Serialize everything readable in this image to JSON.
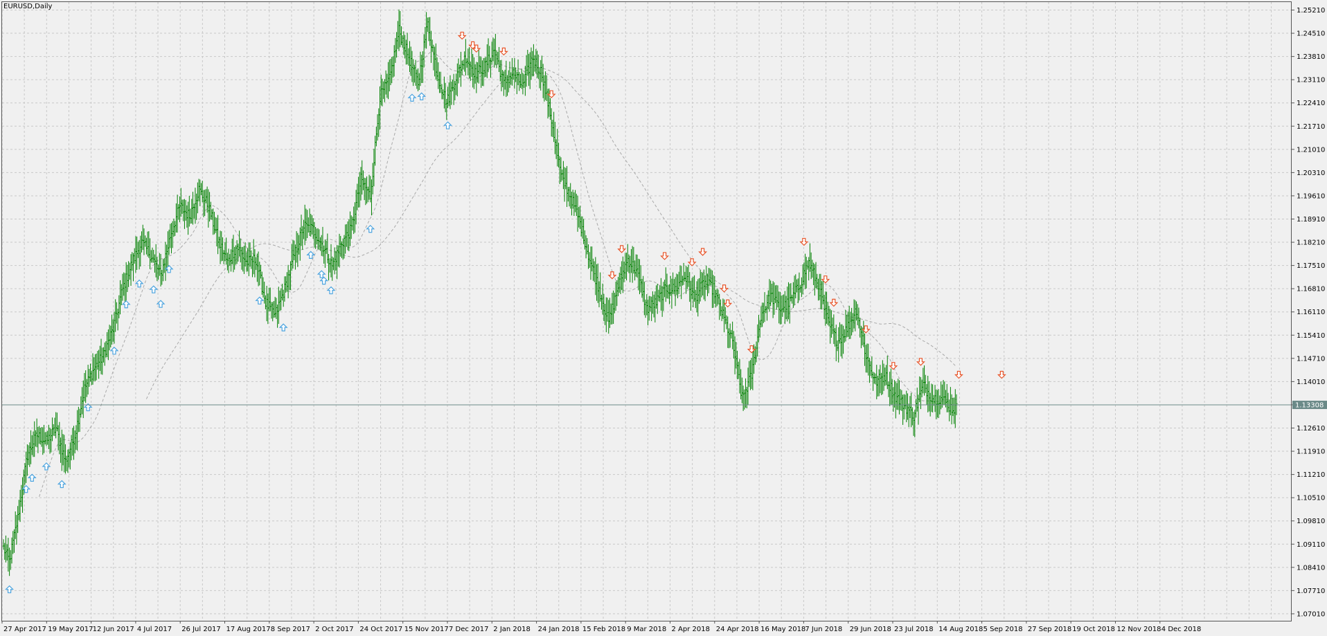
{
  "window": {
    "title": "EURUSD,Daily"
  },
  "colors": {
    "background": "#f0f0f0",
    "grid": "#c8c8c8",
    "bars": "#008000",
    "buy_arrow": "#4aa3df",
    "sell_arrow": "#e8552a",
    "current_price_line": "#6b8a88",
    "price_label_bg": "#6b8a88",
    "price_label_text": "#ffffff",
    "moving_average": "#a8a8a8"
  },
  "chart_data": {
    "type": "ohlc",
    "title": "EURUSD,Daily",
    "grid": true,
    "current_price": "1.13308",
    "ylim": [
      1.068,
      1.2545
    ],
    "y_ticks": [
      "1.25210",
      "1.24510",
      "1.23810",
      "1.23110",
      "1.22410",
      "1.21710",
      "1.21010",
      "1.20310",
      "1.19610",
      "1.18910",
      "1.18210",
      "1.17510",
      "1.16810",
      "1.16110",
      "1.15410",
      "1.14710",
      "1.14010",
      "1.13310",
      "1.12610",
      "1.11910",
      "1.11210",
      "1.10510",
      "1.09810",
      "1.09110",
      "1.08410",
      "1.07710",
      "1.07010"
    ],
    "x_ticks": [
      "27 Apr 2017",
      "19 May 2017",
      "12 Jun 2017",
      "4 Jul 2017",
      "26 Jul 2017",
      "17 Aug 2017",
      "8 Sep 2017",
      "2 Oct 2017",
      "24 Oct 2017",
      "15 Nov 2017",
      "7 Dec 2017",
      "2 Jan 2018",
      "24 Jan 2018",
      "15 Feb 2018",
      "9 Mar 2018",
      "2 Apr 2018",
      "24 Apr 2018",
      "16 May 2018",
      "7 Jun 2018",
      "29 Jun 2018",
      "23 Jul 2018",
      "14 Aug 2018",
      "5 Sep 2018",
      "27 Sep 2018",
      "19 Oct 2018",
      "12 Nov 2018",
      "4 Dec 2018"
    ],
    "price_path_anchors": [
      [
        0,
        1.09
      ],
      [
        5,
        1.086
      ],
      [
        12,
        1.099
      ],
      [
        20,
        1.118
      ],
      [
        28,
        1.124
      ],
      [
        36,
        1.122
      ],
      [
        44,
        1.126
      ],
      [
        52,
        1.116
      ],
      [
        60,
        1.124
      ],
      [
        68,
        1.138
      ],
      [
        76,
        1.144
      ],
      [
        84,
        1.148
      ],
      [
        92,
        1.156
      ],
      [
        100,
        1.168
      ],
      [
        108,
        1.176
      ],
      [
        116,
        1.182
      ],
      [
        124,
        1.178
      ],
      [
        132,
        1.172
      ],
      [
        140,
        1.184
      ],
      [
        148,
        1.193
      ],
      [
        156,
        1.19
      ],
      [
        164,
        1.198
      ],
      [
        172,
        1.193
      ],
      [
        180,
        1.183
      ],
      [
        188,
        1.176
      ],
      [
        196,
        1.181
      ],
      [
        204,
        1.176
      ],
      [
        212,
        1.177
      ],
      [
        220,
        1.164
      ],
      [
        228,
        1.16
      ],
      [
        236,
        1.168
      ],
      [
        244,
        1.178
      ],
      [
        252,
        1.187
      ],
      [
        260,
        1.186
      ],
      [
        268,
        1.181
      ],
      [
        276,
        1.175
      ],
      [
        284,
        1.182
      ],
      [
        292,
        1.186
      ],
      [
        300,
        1.201
      ],
      [
        308,
        1.196
      ],
      [
        316,
        1.226
      ],
      [
        324,
        1.231
      ],
      [
        332,
        1.246
      ],
      [
        340,
        1.238
      ],
      [
        348,
        1.23
      ],
      [
        356,
        1.248
      ],
      [
        364,
        1.233
      ],
      [
        372,
        1.224
      ],
      [
        380,
        1.232
      ],
      [
        388,
        1.238
      ],
      [
        396,
        1.233
      ],
      [
        404,
        1.235
      ],
      [
        412,
        1.24
      ],
      [
        420,
        1.23
      ],
      [
        428,
        1.233
      ],
      [
        436,
        1.229
      ],
      [
        444,
        1.238
      ],
      [
        452,
        1.233
      ],
      [
        460,
        1.219
      ],
      [
        468,
        1.202
      ],
      [
        476,
        1.196
      ],
      [
        484,
        1.188
      ],
      [
        492,
        1.177
      ],
      [
        500,
        1.168
      ],
      [
        508,
        1.158
      ],
      [
        516,
        1.169
      ],
      [
        524,
        1.177
      ],
      [
        532,
        1.173
      ],
      [
        540,
        1.162
      ],
      [
        548,
        1.164
      ],
      [
        556,
        1.168
      ],
      [
        564,
        1.168
      ],
      [
        572,
        1.172
      ],
      [
        580,
        1.165
      ],
      [
        588,
        1.17
      ],
      [
        596,
        1.168
      ],
      [
        604,
        1.16
      ],
      [
        612,
        1.152
      ],
      [
        620,
        1.135
      ],
      [
        628,
        1.142
      ],
      [
        636,
        1.16
      ],
      [
        644,
        1.166
      ],
      [
        652,
        1.162
      ],
      [
        660,
        1.164
      ],
      [
        668,
        1.169
      ],
      [
        676,
        1.176
      ],
      [
        684,
        1.169
      ],
      [
        692,
        1.158
      ],
      [
        700,
        1.152
      ],
      [
        708,
        1.156
      ],
      [
        716,
        1.162
      ],
      [
        724,
        1.148
      ],
      [
        732,
        1.14
      ],
      [
        740,
        1.142
      ],
      [
        748,
        1.136
      ],
      [
        756,
        1.133
      ],
      [
        764,
        1.13
      ],
      [
        772,
        1.139
      ],
      [
        780,
        1.135
      ],
      [
        788,
        1.135
      ],
      [
        796,
        1.132
      ]
    ],
    "buy_signals": [
      5,
      19,
      24,
      36,
      49,
      71,
      93,
      103,
      114,
      126,
      132,
      139,
      215,
      235,
      258,
      267,
      269,
      275,
      308,
      343,
      351,
      373
    ],
    "sell_signals": [
      385,
      394,
      397,
      420,
      460,
      511,
      519,
      555,
      578,
      587,
      605,
      608,
      628,
      672,
      690,
      697,
      724,
      747,
      770,
      802,
      838
    ]
  }
}
